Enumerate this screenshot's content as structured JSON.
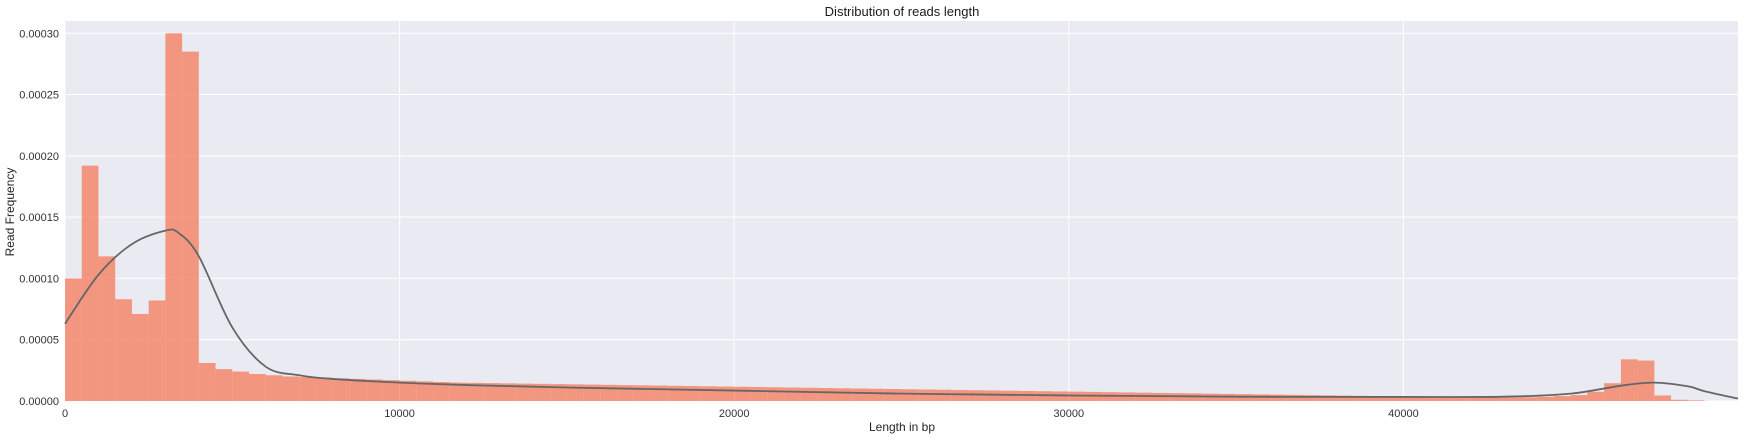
{
  "chart_data": {
    "type": "bar",
    "title": "Distribution of reads length",
    "xlabel": "Length in bp",
    "ylabel": "Read Frequency",
    "xlim": [
      0,
      50000
    ],
    "ylim": [
      0,
      0.00031
    ],
    "xticks": [
      0,
      10000,
      20000,
      30000,
      40000
    ],
    "xtick_labels": [
      "0",
      "10000",
      "20000",
      "30000",
      "40000"
    ],
    "yticks": [
      0,
      5e-05,
      0.0001,
      0.00015,
      0.0002,
      0.00025,
      0.0003
    ],
    "ytick_labels": [
      "0.00000",
      "0.00005",
      "0.00010",
      "0.00015",
      "0.00020",
      "0.00025",
      "0.00030"
    ],
    "grid": true,
    "bar_color": "#f4876b",
    "kde_color": "#666666",
    "background_color": "#eaeaf2",
    "histogram": {
      "bin_width": 500,
      "bin_start": 0,
      "values": [
        0.0001,
        0.000192,
        0.000118,
        8.3e-05,
        7.1e-05,
        8.2e-05,
        0.0003,
        0.000285,
        3.1e-05,
        2.6e-05,
        2.4e-05,
        2.2e-05,
        2.1e-05,
        2e-05,
        1.95e-05,
        1.9e-05,
        1.85e-05,
        1.8e-05,
        1.75e-05,
        1.7e-05,
        1.65e-05,
        1.6e-05,
        1.55e-05,
        1.5e-05,
        1.48e-05,
        1.46e-05,
        1.44e-05,
        1.42e-05,
        1.4e-05,
        1.38e-05,
        1.36e-05,
        1.34e-05,
        1.32e-05,
        1.3e-05,
        1.28e-05,
        1.26e-05,
        1.24e-05,
        1.22e-05,
        1.2e-05,
        1.18e-05,
        1.16e-05,
        1.14e-05,
        1.12e-05,
        1.1e-05,
        1.08e-05,
        1.06e-05,
        1.04e-05,
        1.02e-05,
        1e-05,
        9.8e-06,
        9.6e-06,
        9.4e-06,
        9.2e-06,
        9e-06,
        8.8e-06,
        8.6e-06,
        8.4e-06,
        8.2e-06,
        8e-06,
        7.8e-06,
        7.6e-06,
        7.4e-06,
        7.2e-06,
        7e-06,
        6.8e-06,
        6.6e-06,
        6.4e-06,
        6.2e-06,
        6e-06,
        5.8e-06,
        5.6e-06,
        5.4e-06,
        5.2e-06,
        5e-06,
        4.8e-06,
        4.6e-06,
        4.4e-06,
        4.2e-06,
        4e-06,
        3.8e-06,
        3.6e-06,
        3.4e-06,
        3.2e-06,
        3e-06,
        2.9e-06,
        2.8e-06,
        2.8e-06,
        3e-06,
        3.4e-06,
        4e-06,
        4.8e-06,
        7.5e-06,
        1.45e-05,
        3.4e-05,
        3.3e-05,
        4.5e-06,
        1e-06,
        5e-07
      ]
    },
    "kde": {
      "x": [
        0,
        1000,
        2000,
        3000,
        3400,
        4000,
        5000,
        6000,
        7000,
        8000,
        10000,
        12000,
        15000,
        20000,
        25000,
        30000,
        35000,
        40000,
        43000,
        45000,
        46500,
        47500,
        48500,
        49000,
        50000
      ],
      "y": [
        6.3e-05,
        0.000103,
        0.000128,
        0.000139,
        0.000137,
        0.000118,
        6e-05,
        2.8e-05,
        2.1e-05,
        1.8e-05,
        1.5e-05,
        1.3e-05,
        1.1e-05,
        8.5e-06,
        6e-06,
        4.5e-06,
        3.5e-06,
        3.3e-06,
        3.5e-06,
        6e-06,
        1.25e-05,
        1.5e-05,
        1.2e-05,
        8e-06,
        2e-06
      ]
    }
  }
}
